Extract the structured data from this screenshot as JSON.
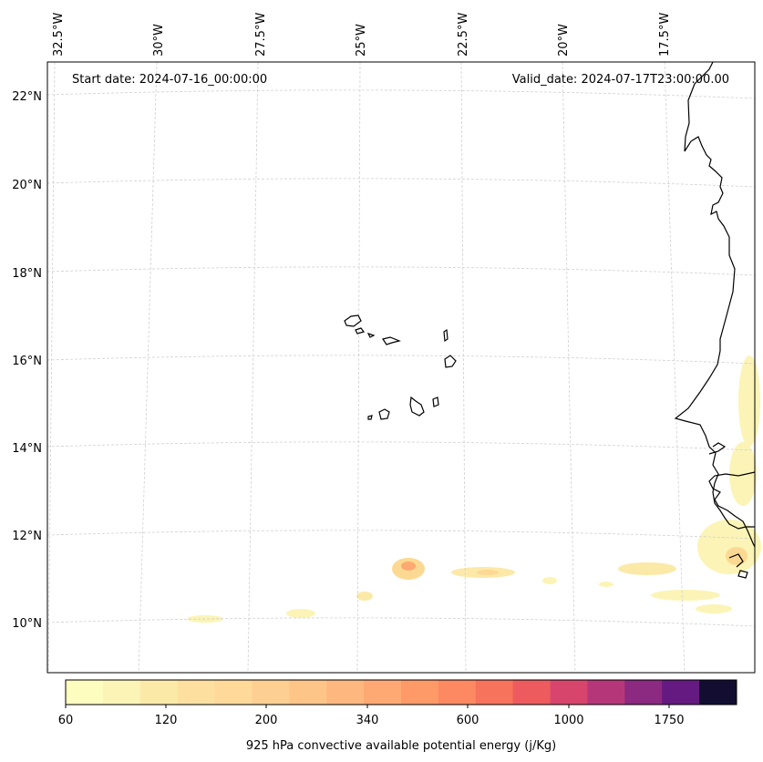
{
  "header": {
    "start_date": "Start date: 2024-07-16_00:00:00",
    "valid_date": "Valid_date: 2024-07-17T23:00:00.00"
  },
  "axes": {
    "lon_labels": [
      "32.5°W",
      "30°W",
      "27.5°W",
      "25°W",
      "22.5°W",
      "20°W",
      "17.5°W"
    ],
    "lat_labels": [
      "22°N",
      "20°N",
      "18°N",
      "16°N",
      "14°N",
      "12°N",
      "10°N"
    ]
  },
  "colorbar": {
    "label": "925 hPa convective available potential energy (j/Kg)",
    "tick_labels": [
      "60",
      "120",
      "200",
      "340",
      "600",
      "1000",
      "1750"
    ],
    "colors": [
      "#fcfdbf",
      "#fcf4b6",
      "#fbe9a8",
      "#fde0a0",
      "#fed99a",
      "#fecf92",
      "#fec589",
      "#feb87f",
      "#fea973",
      "#fe9a68",
      "#fc8961",
      "#f7735c",
      "#ee5b5e",
      "#d8456c",
      "#b63779",
      "#8c2981",
      "#641a80",
      "#120d31"
    ]
  },
  "map": {
    "extent": "32.5°W–16.5°W, 9°N–22.5°N",
    "features": [
      "coastline",
      "cape-verde-islands",
      "west-africa-coast"
    ]
  }
}
